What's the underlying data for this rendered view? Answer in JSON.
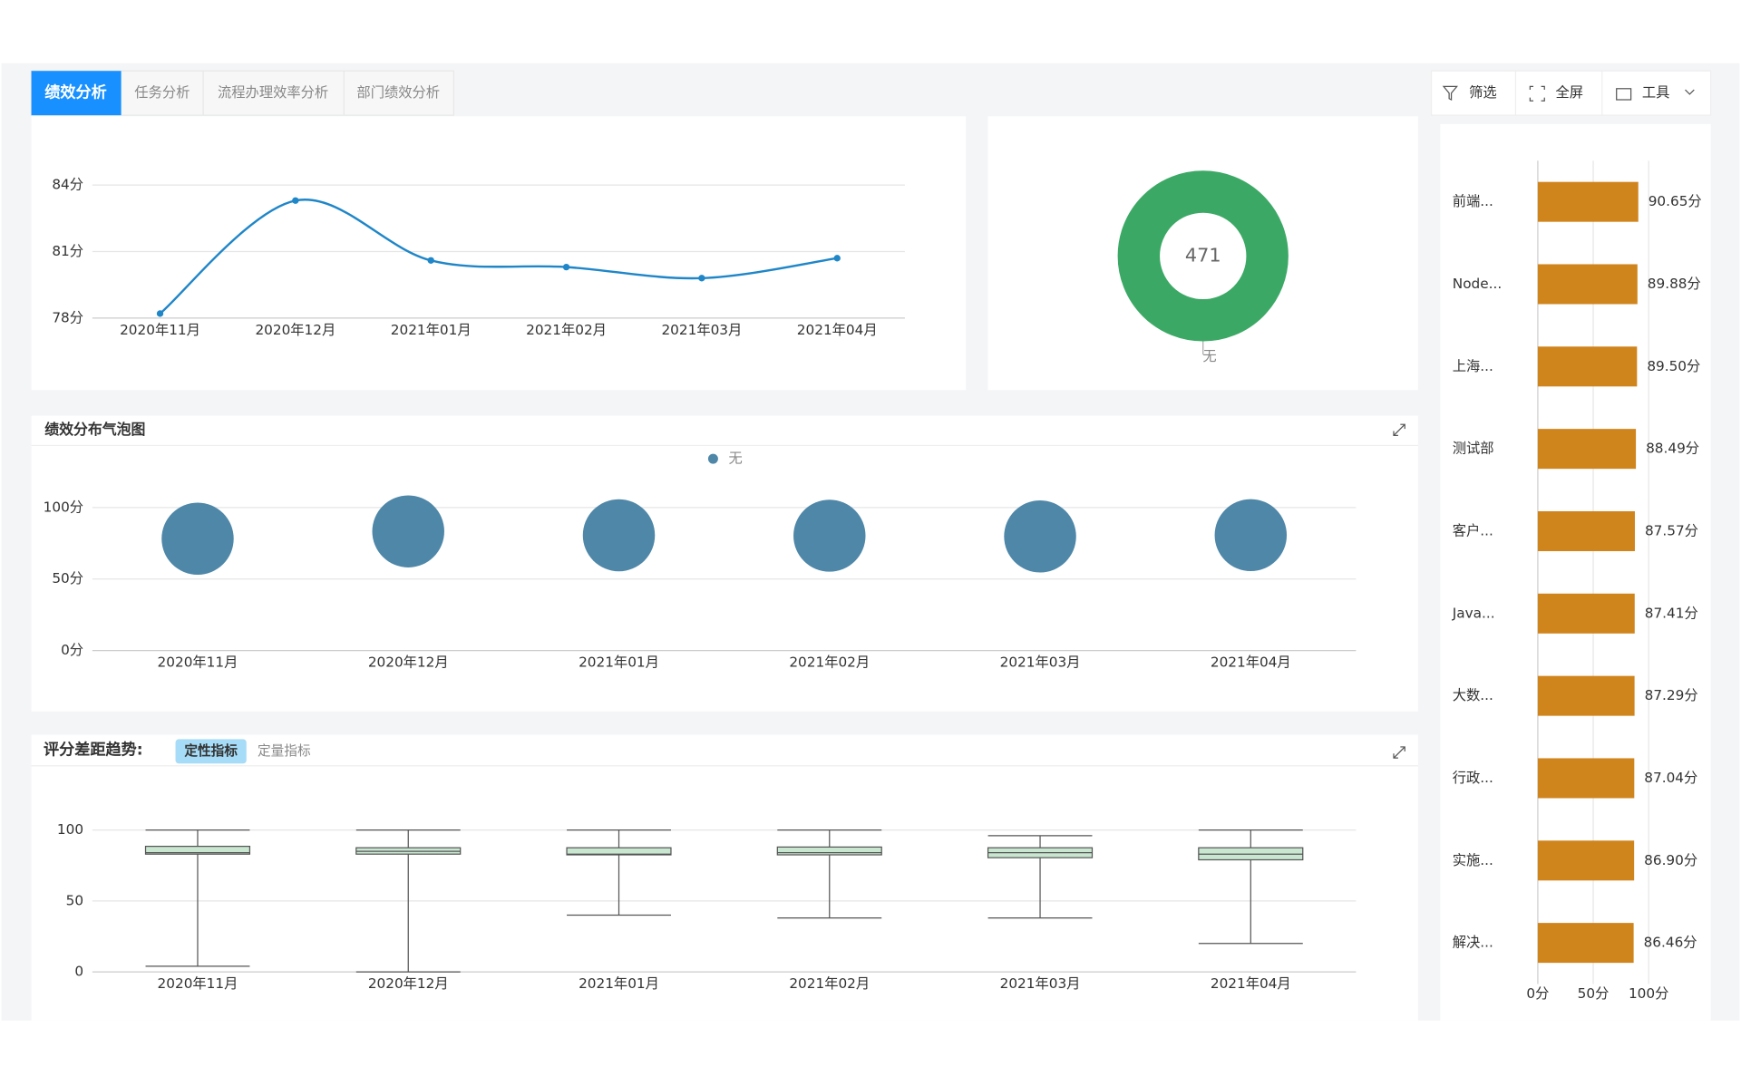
{
  "tabs": [
    "绩效分析",
    "任务分析",
    "流程办理效率分析",
    "部门绩效分析"
  ],
  "toolbar": [
    "筛选",
    "全屏",
    "工具"
  ],
  "chart_data": [
    {
      "type": "line",
      "categories": [
        "2020年11月",
        "2020年12月",
        "2021年01月",
        "2021年02月",
        "2021年03月",
        "2021年04月"
      ],
      "values": [
        78.2,
        83.3,
        80.6,
        80.3,
        79.8,
        80.7
      ],
      "color": "#1f86c8",
      "ylim": [
        78,
        84
      ],
      "yticks": [
        {
          "value": 78,
          "label": "78分"
        },
        {
          "value": 81,
          "label": "81分"
        },
        {
          "value": 84,
          "label": "84分"
        }
      ],
      "grid": true
    },
    {
      "type": "pie",
      "categories": [
        "无"
      ],
      "values": [
        471
      ],
      "color": "#3ba965"
    },
    {
      "type": "scatter",
      "title": "绩效分布气泡图",
      "categories": [
        "2020年11月",
        "2020年12月",
        "2021年01月",
        "2021年02月",
        "2021年03月",
        "2021年04月"
      ],
      "series": [
        {
          "name": "无",
          "color": "#4e87a8",
          "values": [
            78.2,
            83.3,
            80.6,
            80.3,
            79.8,
            80.7
          ]
        }
      ],
      "ylim": [
        0,
        100
      ],
      "yticks": [
        {
          "value": 0,
          "label": "0分"
        },
        {
          "value": 50,
          "label": "50分"
        },
        {
          "value": 100,
          "label": "100分"
        }
      ],
      "grid": true,
      "legend": "top"
    },
    {
      "type": "box",
      "title": "评分差距趋势:",
      "tabs": [
        "定性指标",
        "定量指标"
      ],
      "categories": [
        "2020年11月",
        "2020年12月",
        "2021年01月",
        "2021年02月",
        "2021年03月",
        "2021年04月"
      ],
      "min": [
        4,
        0,
        40,
        38,
        38,
        20
      ],
      "q1": [
        83,
        83,
        82.5,
        82.5,
        80.5,
        79
      ],
      "median": [
        84,
        85,
        83,
        84,
        84,
        83
      ],
      "q3": [
        88.5,
        87.5,
        87.5,
        88,
        87.5,
        87.5
      ],
      "max": [
        100,
        100,
        100,
        100,
        96,
        100
      ],
      "color": "#c9e6d0",
      "ylim": [
        0,
        100
      ],
      "yticks": [
        0,
        50,
        100
      ],
      "grid": true
    },
    {
      "type": "hbar",
      "categories": [
        "前端...",
        "Node...",
        "上海...",
        "测试部",
        "客户...",
        "Java...",
        "大数...",
        "行政...",
        "实施...",
        "解决..."
      ],
      "values": [
        90.65,
        89.88,
        89.5,
        88.49,
        87.57,
        87.41,
        87.29,
        87.04,
        86.9,
        86.46
      ],
      "value_labels": [
        "90.65分",
        "89.88分",
        "89.50分",
        "88.49分",
        "87.57分",
        "87.41分",
        "87.29分",
        "87.04分",
        "86.90分",
        "86.46分"
      ],
      "color": "#d0841c",
      "xlim": [
        0,
        100
      ],
      "xticks": [
        {
          "value": 0,
          "label": "0分"
        },
        {
          "value": 50,
          "label": "50分"
        },
        {
          "value": 100,
          "label": "100分"
        }
      ],
      "grid": true
    }
  ]
}
